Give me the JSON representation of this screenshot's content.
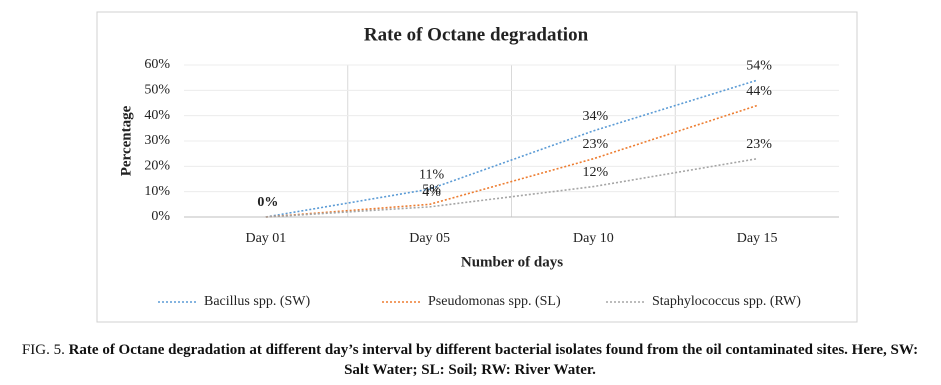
{
  "chart_data": {
    "type": "line",
    "title": "Rate of Octane degradation",
    "x_label": "Number of days",
    "y_label": "Percentage",
    "categories": [
      "Day 01",
      "Day 05",
      "Day 10",
      "Day 15"
    ],
    "series": [
      {
        "name": "Bacillus spp. (SW)",
        "color": "#5b9bd5",
        "values": [
          0,
          11,
          34,
          54
        ],
        "value_labels": [
          "0%",
          "11%",
          "34%",
          "54%"
        ]
      },
      {
        "name": "Pseudomonas spp. (SL)",
        "color": "#ed7d31",
        "values": [
          0,
          5,
          23,
          44
        ],
        "value_labels": [
          null,
          "5%",
          "23%",
          "44%"
        ]
      },
      {
        "name": "Staphylococcus spp. (RW)",
        "color": "#a5a5a5",
        "values": [
          0,
          4,
          12,
          23
        ],
        "value_labels": [
          null,
          "4%",
          "12%",
          "23%"
        ]
      }
    ],
    "ylim": [
      0,
      60
    ],
    "yticks": [
      {
        "value": 0,
        "label": "0%"
      },
      {
        "value": 10,
        "label": "10%"
      },
      {
        "value": 20,
        "label": "20%"
      },
      {
        "value": 30,
        "label": "30%"
      },
      {
        "value": 40,
        "label": "40%"
      },
      {
        "value": 50,
        "label": "50%"
      },
      {
        "value": 60,
        "label": "60%"
      }
    ],
    "grid": true,
    "legend": "bottom"
  },
  "caption": {
    "label": "FIG. 5.",
    "text": "Rate of Octane degradation at different day’s interval by different bacterial isolates found from the oil contaminated sites. Here, SW: Salt Water; SL: Soil; RW: River Water."
  }
}
